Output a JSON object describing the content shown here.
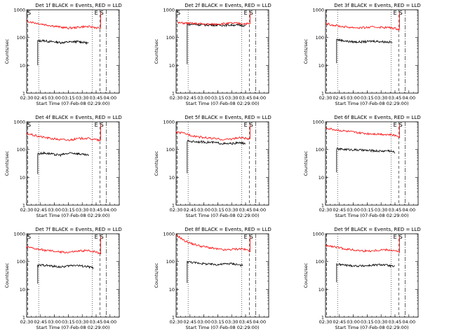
{
  "chart_data": [
    {
      "type": "line",
      "title": "Det 1f BLACK = Events, RED = LLD",
      "xlabel": "Start Time (07-Feb-08 02:29:00)",
      "ylabel": "Counts/sec",
      "yscale": "log",
      "ylim": [
        1,
        1000
      ],
      "xlim": [
        "02:30",
        "04:10"
      ],
      "xticks": [
        "02:30",
        "02:45",
        "03:00",
        "03:15",
        "03:30",
        "03:45",
        "04:00"
      ],
      "yticks": [
        "1",
        "10",
        "100",
        "1000"
      ],
      "markers": [
        "S",
        "E",
        "S"
      ],
      "series": [
        {
          "color": "#000000",
          "start": "02:42",
          "end": "03:37",
          "values": [
            75,
            78,
            72,
            70,
            66,
            68,
            70,
            72,
            68,
            62
          ]
        },
        {
          "color": "#ff0000",
          "start": "02:30",
          "end": "03:50",
          "values": [
            400,
            340,
            300,
            270,
            240,
            220,
            230,
            250,
            240,
            215
          ]
        }
      ]
    },
    {
      "type": "line",
      "title": "Det 2f BLACK = Events, RED = LLD",
      "xlabel": "Start Time (07-Feb-08 02:29:00)",
      "ylabel": "Counts/sec",
      "yscale": "log",
      "ylim": [
        1,
        1000
      ],
      "xlim": [
        "02:30",
        "04:10"
      ],
      "xticks": [
        "02:30",
        "02:45",
        "03:00",
        "03:15",
        "03:30",
        "03:45",
        "04:00"
      ],
      "yticks": [
        "1",
        "10",
        "100",
        "1000"
      ],
      "markers": [
        "S",
        "E",
        "S"
      ],
      "series": [
        {
          "color": "#000000",
          "start": "02:42",
          "end": "03:45",
          "values": [
            300,
            300,
            290,
            285,
            285,
            280,
            280,
            285,
            280,
            270
          ]
        },
        {
          "color": "#ff0000",
          "start": "02:32",
          "end": "03:50",
          "values": [
            340,
            330,
            320,
            310,
            300,
            310,
            320,
            330,
            320,
            310
          ]
        }
      ]
    },
    {
      "type": "line",
      "title": "Det 3f BLACK = Events, RED = LLD",
      "xlabel": "Start Time (07-Feb-08 02:29:00)",
      "ylabel": "Counts/sec",
      "yscale": "log",
      "ylim": [
        1,
        1000
      ],
      "xlim": [
        "02:30",
        "04:10"
      ],
      "xticks": [
        "02:30",
        "02:45",
        "03:00",
        "03:15",
        "03:30",
        "03:45",
        "04:00"
      ],
      "yticks": [
        "1",
        "10",
        "100",
        "1000"
      ],
      "markers": [
        "E",
        "S"
      ],
      "series": [
        {
          "color": "#000000",
          "start": "02:42",
          "end": "03:42",
          "values": [
            85,
            78,
            72,
            70,
            70,
            72,
            75,
            72,
            70,
            68
          ]
        },
        {
          "color": "#ff0000",
          "start": "02:30",
          "end": "03:50",
          "values": [
            320,
            280,
            250,
            235,
            225,
            230,
            240,
            235,
            225,
            200
          ]
        }
      ]
    },
    {
      "type": "line",
      "title": "Det 4f BLACK = Events, RED = LLD",
      "xlabel": "Start Time (07-Feb-08 02:29:00)",
      "ylabel": "Counts/sec",
      "yscale": "log",
      "ylim": [
        1,
        1000
      ],
      "xlim": [
        "02:30",
        "04:10"
      ],
      "xticks": [
        "02:30",
        "02:45",
        "03:00",
        "03:15",
        "03:30",
        "03:45",
        "04:00"
      ],
      "yticks": [
        "1",
        "10",
        "100",
        "1000"
      ],
      "markers": [
        "S",
        "E",
        "S"
      ],
      "series": [
        {
          "color": "#000000",
          "start": "02:42",
          "end": "03:37",
          "values": [
            70,
            75,
            72,
            66,
            64,
            70,
            75,
            72,
            66,
            62
          ]
        },
        {
          "color": "#ff0000",
          "start": "02:30",
          "end": "03:50",
          "values": [
            380,
            320,
            280,
            250,
            230,
            220,
            240,
            260,
            240,
            210
          ]
        }
      ]
    },
    {
      "type": "line",
      "title": "Det 5f BLACK = Events, RED = LLD",
      "xlabel": "Start Time (07-Feb-08 02:29:00)",
      "ylabel": "Counts/sec",
      "yscale": "log",
      "ylim": [
        1,
        1000
      ],
      "xlim": [
        "02:30",
        "04:10"
      ],
      "xticks": [
        "02:30",
        "02:45",
        "03:00",
        "03:15",
        "03:30",
        "03:45",
        "04:00"
      ],
      "yticks": [
        "1",
        "10",
        "100",
        "1000"
      ],
      "markers": [
        "E",
        "S"
      ],
      "series": [
        {
          "color": "#000000",
          "start": "02:42",
          "end": "03:45",
          "values": [
            200,
            195,
            190,
            185,
            180,
            170,
            160,
            165,
            175,
            165
          ]
        },
        {
          "color": "#ff0000",
          "start": "02:30",
          "end": "03:50",
          "values": [
            420,
            380,
            320,
            280,
            260,
            240,
            230,
            250,
            270,
            230
          ]
        }
      ]
    },
    {
      "type": "line",
      "title": "Det 6f BLACK = Events, RED = LLD",
      "xlabel": "Start Time (07-Feb-08 02:29:00)",
      "ylabel": "Counts/sec",
      "yscale": "log",
      "ylim": [
        1,
        1000
      ],
      "xlim": [
        "02:30",
        "04:10"
      ],
      "xticks": [
        "02:30",
        "02:45",
        "03:00",
        "03:15",
        "03:30",
        "03:45",
        "04:00"
      ],
      "yticks": [
        "1",
        "10",
        "100",
        "1000"
      ],
      "markers": [
        "E",
        "S"
      ],
      "series": [
        {
          "color": "#000000",
          "start": "02:42",
          "end": "03:45",
          "values": [
            105,
            102,
            100,
            98,
            95,
            92,
            90,
            88,
            92,
            80
          ]
        },
        {
          "color": "#ff0000",
          "start": "02:30",
          "end": "03:50",
          "values": [
            600,
            530,
            480,
            440,
            400,
            380,
            370,
            360,
            340,
            300
          ]
        }
      ]
    },
    {
      "type": "line",
      "title": "Det 7f BLACK = Events, RED = LLD",
      "xlabel": "Start Time (07-Feb-08 02:29:00)",
      "ylabel": "Counts/sec",
      "yscale": "log",
      "ylim": [
        1,
        1000
      ],
      "xlim": [
        "02:30",
        "04:10"
      ],
      "xticks": [
        "02:30",
        "02:45",
        "03:00",
        "03:15",
        "03:30",
        "03:45",
        "04:00"
      ],
      "yticks": [
        "1",
        "10",
        "100",
        "1000"
      ],
      "markers": [
        "S",
        "E",
        "S"
      ],
      "series": [
        {
          "color": "#000000",
          "start": "02:42",
          "end": "03:42",
          "values": [
            72,
            75,
            70,
            66,
            64,
            70,
            75,
            70,
            66,
            60
          ]
        },
        {
          "color": "#ff0000",
          "start": "02:30",
          "end": "03:50",
          "values": [
            330,
            290,
            260,
            240,
            220,
            215,
            230,
            250,
            240,
            200
          ]
        }
      ]
    },
    {
      "type": "line",
      "title": "Det 8f BLACK = Events, RED = LLD",
      "xlabel": "Start Time (07-Feb-08 02:29:00)",
      "ylabel": "Counts/sec",
      "yscale": "log",
      "ylim": [
        1,
        1000
      ],
      "xlim": [
        "02:30",
        "04:10"
      ],
      "xticks": [
        "02:30",
        "02:45",
        "03:00",
        "03:15",
        "03:30",
        "03:45",
        "04:00"
      ],
      "yticks": [
        "1",
        "10",
        "100",
        "1000"
      ],
      "markers": [
        "E",
        "S"
      ],
      "series": [
        {
          "color": "#000000",
          "start": "02:42",
          "end": "03:42",
          "values": [
            100,
            92,
            88,
            82,
            80,
            78,
            82,
            85,
            80,
            72
          ]
        },
        {
          "color": "#ff0000",
          "start": "02:30",
          "end": "03:50",
          "values": [
            900,
            560,
            430,
            360,
            320,
            280,
            260,
            280,
            290,
            240
          ]
        }
      ]
    },
    {
      "type": "line",
      "title": "Det 9f BLACK = Events, RED = LLD",
      "xlabel": "Start Time (07-Feb-08 02:29:00)",
      "ylabel": "Counts/sec",
      "yscale": "log",
      "ylim": [
        1,
        1000
      ],
      "xlim": [
        "02:30",
        "04:10"
      ],
      "xticks": [
        "02:30",
        "02:45",
        "03:00",
        "03:15",
        "03:30",
        "03:45",
        "04:00"
      ],
      "yticks": [
        "1",
        "10",
        "100",
        "1000"
      ],
      "markers": [
        "E",
        "S"
      ],
      "series": [
        {
          "color": "#000000",
          "start": "02:42",
          "end": "03:45",
          "values": [
            80,
            76,
            72,
            70,
            70,
            72,
            75,
            78,
            72,
            65
          ]
        },
        {
          "color": "#ff0000",
          "start": "02:30",
          "end": "03:50",
          "values": [
            380,
            340,
            300,
            270,
            250,
            240,
            250,
            270,
            260,
            220
          ]
        }
      ]
    }
  ]
}
